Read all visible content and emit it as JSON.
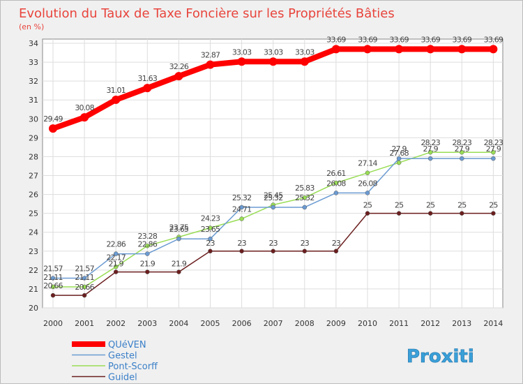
{
  "chart_data": {
    "type": "line",
    "title": "Evolution du Taux de Taxe Foncière sur les Propriétés Bâties",
    "ylabel": "(en %)",
    "xlabel": "",
    "ylim": [
      20,
      34
    ],
    "yticks": [
      "20",
      "21",
      "22",
      "23",
      "24",
      "25",
      "26",
      "27",
      "28",
      "29",
      "30",
      "31",
      "32",
      "33",
      "34"
    ],
    "categories": [
      "2000",
      "2001",
      "2002",
      "2003",
      "2004",
      "2005",
      "2006",
      "2007",
      "2008",
      "2009",
      "2010",
      "2011",
      "2012",
      "2013",
      "2014"
    ],
    "grid": true,
    "legend_position": "bottom-left",
    "series": [
      {
        "name": "QUéVEN",
        "color": "#ff0000",
        "values": [
          29.49,
          30.08,
          31.01,
          31.63,
          32.26,
          32.87,
          33.03,
          33.03,
          33.03,
          33.69,
          33.69,
          33.69,
          33.69,
          33.69,
          33.69
        ],
        "labels": [
          "29.49",
          "30.08",
          "31.01",
          "31.63",
          "32.26",
          "32.87",
          "33.03",
          "33.03",
          "33.03",
          "33.69",
          "33.69",
          "33.69",
          "33.69",
          "33.69",
          "33.69"
        ]
      },
      {
        "name": "Gestel",
        "color": "#6b9bd2",
        "values": [
          21.57,
          21.57,
          22.86,
          22.86,
          23.65,
          23.65,
          25.32,
          25.32,
          25.32,
          26.08,
          26.08,
          27.9,
          27.9,
          27.9,
          27.9
        ],
        "labels": [
          "21.57",
          "21.57",
          "22.86",
          "22.86",
          "23.65",
          "23.65",
          "25.32",
          "25.32",
          "25.32",
          "26.08",
          "26.08",
          "27.9",
          "27.9",
          "27.9",
          "27.9"
        ]
      },
      {
        "name": "Pont-Scorff",
        "color": "#99dd55",
        "values": [
          21.11,
          21.11,
          22.17,
          23.28,
          23.75,
          24.23,
          24.71,
          25.45,
          25.83,
          26.61,
          27.14,
          27.68,
          28.23,
          28.23,
          28.23
        ],
        "labels": [
          "21.11",
          "21.11",
          "22.17",
          "23.28",
          "23.75",
          "24.23",
          "24.71",
          "25.45",
          "25.83",
          "26.61",
          "27.14",
          "27.68",
          "28.23",
          "28.23",
          "28.23"
        ]
      },
      {
        "name": "Guidel",
        "color": "#6b1e1e",
        "values": [
          20.66,
          20.66,
          21.9,
          21.9,
          21.9,
          23,
          23,
          23,
          23,
          23,
          25,
          25,
          25,
          25,
          25
        ],
        "labels": [
          "20.66",
          "20.66",
          "21.9",
          "21.9",
          "21.9",
          "23",
          "23",
          "23",
          "23",
          "23",
          "25",
          "25",
          "25",
          "25",
          "25"
        ]
      }
    ]
  },
  "watermark": "Proxiti"
}
